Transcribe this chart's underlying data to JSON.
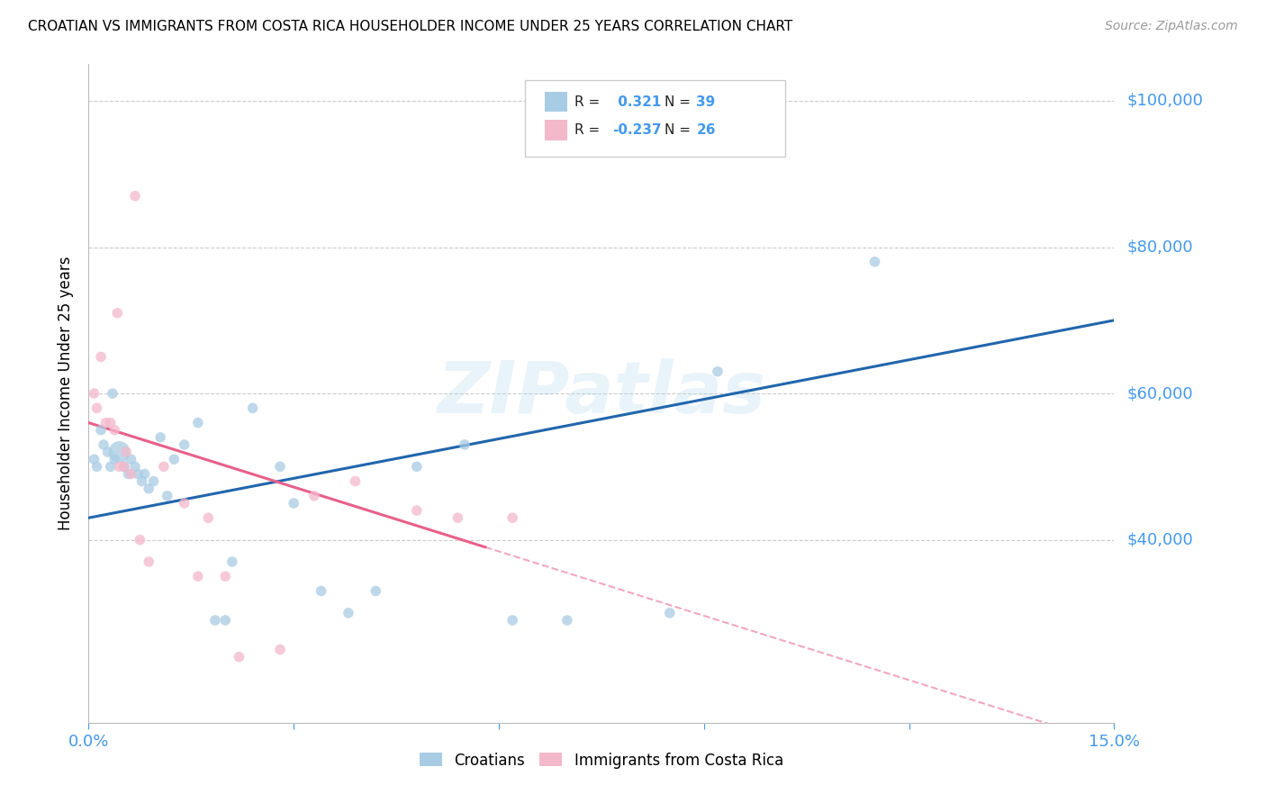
{
  "title": "CROATIAN VS IMMIGRANTS FROM COSTA RICA HOUSEHOLDER INCOME UNDER 25 YEARS CORRELATION CHART",
  "source": "Source: ZipAtlas.com",
  "ylabel": "Householder Income Under 25 years",
  "legend_label1": "Croatians",
  "legend_label2": "Immigrants from Costa Rica",
  "r1": 0.321,
  "n1": 39,
  "r2": -0.237,
  "n2": 26,
  "color_blue": "#a8cce4",
  "color_pink": "#f4b8cb",
  "color_blue_line": "#2166ac",
  "color_pink_line": "#e8608a",
  "color_axis_labels": "#4499ee",
  "xlim": [
    0.0,
    15.0
  ],
  "ylim": [
    15000,
    105000
  ],
  "yticks": [
    40000,
    60000,
    80000,
    100000
  ],
  "xtick_positions": [
    0.0,
    3.0,
    6.0,
    9.0,
    12.0,
    15.0
  ],
  "blue_x": [
    0.08,
    0.12,
    0.18,
    0.22,
    0.28,
    0.32,
    0.38,
    0.45,
    0.52,
    0.58,
    0.62,
    0.68,
    0.72,
    0.78,
    0.82,
    0.88,
    0.95,
    1.05,
    1.15,
    1.25,
    1.4,
    1.6,
    1.85,
    2.1,
    2.4,
    2.8,
    3.0,
    3.4,
    3.8,
    4.2,
    4.8,
    5.5,
    6.2,
    7.0,
    8.5,
    9.2,
    11.5,
    2.0,
    0.35
  ],
  "blue_y": [
    51000,
    50000,
    55000,
    53000,
    52000,
    50000,
    51000,
    52000,
    50000,
    49000,
    51000,
    50000,
    49000,
    48000,
    49000,
    47000,
    48000,
    54000,
    46000,
    51000,
    53000,
    56000,
    29000,
    37000,
    58000,
    50000,
    45000,
    33000,
    30000,
    33000,
    50000,
    53000,
    29000,
    29000,
    30000,
    63000,
    78000,
    29000,
    60000
  ],
  "blue_size": [
    70,
    70,
    70,
    70,
    70,
    70,
    70,
    300,
    70,
    70,
    70,
    70,
    70,
    70,
    70,
    70,
    70,
    70,
    70,
    70,
    70,
    70,
    70,
    70,
    70,
    70,
    70,
    70,
    70,
    70,
    70,
    70,
    70,
    70,
    70,
    70,
    70,
    70,
    70
  ],
  "pink_x": [
    0.08,
    0.12,
    0.18,
    0.25,
    0.32,
    0.38,
    0.45,
    0.52,
    0.62,
    0.75,
    0.88,
    1.1,
    1.4,
    1.75,
    2.2,
    2.8,
    3.3,
    3.9,
    4.8,
    5.4,
    6.2,
    0.42,
    0.55,
    1.6,
    2.0,
    0.68
  ],
  "pink_y": [
    60000,
    58000,
    65000,
    56000,
    56000,
    55000,
    50000,
    50000,
    49000,
    40000,
    37000,
    50000,
    45000,
    43000,
    24000,
    25000,
    46000,
    48000,
    44000,
    43000,
    43000,
    71000,
    52000,
    35000,
    35000,
    87000
  ],
  "pink_size": [
    70,
    70,
    70,
    70,
    70,
    70,
    70,
    70,
    70,
    70,
    70,
    70,
    70,
    70,
    70,
    70,
    70,
    70,
    70,
    70,
    70,
    70,
    70,
    70,
    70,
    70
  ],
  "watermark": "ZIPatlas",
  "background_color": "#ffffff",
  "grid_color": "#cccccc",
  "blue_line_start_x": 0.0,
  "blue_line_end_x": 15.0,
  "pink_line_solid_end_x": 5.8,
  "pink_line_dashed_end_x": 15.0
}
